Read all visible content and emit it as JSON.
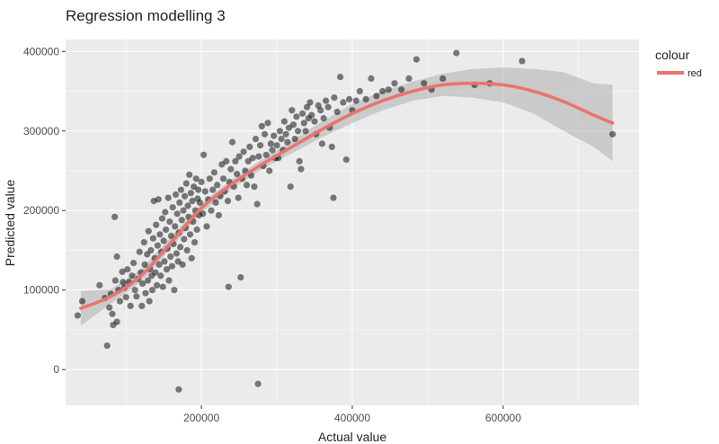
{
  "chart_data": {
    "type": "scatter",
    "title": "Regression modelling 3",
    "xlabel": "Actual value",
    "ylabel": "Predicted value",
    "xlim": [
      20000,
      780000
    ],
    "ylim": [
      -45000,
      415000
    ],
    "x_ticks": [
      200000,
      400000,
      600000
    ],
    "x_tick_labels": [
      "200000",
      "400000",
      "600000"
    ],
    "y_ticks": [
      0,
      100000,
      200000,
      300000,
      400000
    ],
    "y_tick_labels": [
      "0",
      "100000",
      "200000",
      "300000",
      "400000"
    ],
    "grid": true,
    "legend": {
      "title": "colour",
      "entries": [
        {
          "label": "red",
          "color": "#e8756e"
        }
      ],
      "position": "right-top"
    },
    "colors": {
      "panel": "#ebebeb",
      "grid": "#ffffff",
      "points": "#000000",
      "smooth": "#e8756e",
      "ribbon": "#999999"
    },
    "smooth": {
      "x": [
        40000,
        80000,
        120000,
        160000,
        200000,
        240000,
        280000,
        320000,
        360000,
        400000,
        440000,
        480000,
        520000,
        560000,
        600000,
        640000,
        680000,
        720000,
        745000
      ],
      "y": [
        77000,
        92000,
        118000,
        160000,
        203000,
        233000,
        258000,
        280000,
        302000,
        322000,
        338000,
        350000,
        358000,
        360000,
        358000,
        350000,
        337000,
        320000,
        310000
      ],
      "lower": [
        55000,
        83000,
        110000,
        153000,
        197000,
        227000,
        252000,
        272000,
        292000,
        310000,
        326000,
        338000,
        344000,
        342000,
        336000,
        322000,
        300000,
        280000,
        262000
      ],
      "upper": [
        99000,
        101000,
        126000,
        167000,
        209000,
        239000,
        264000,
        288000,
        312000,
        334000,
        350000,
        362000,
        372000,
        378000,
        380000,
        378000,
        374000,
        360000,
        358000
      ]
    },
    "points": [
      [
        36000,
        68000
      ],
      [
        42000,
        86000
      ],
      [
        65000,
        106000
      ],
      [
        72000,
        90000
      ],
      [
        75000,
        30000
      ],
      [
        78000,
        78000
      ],
      [
        80000,
        95000
      ],
      [
        82000,
        70000
      ],
      [
        83000,
        56000
      ],
      [
        85000,
        192000
      ],
      [
        86000,
        112000
      ],
      [
        88000,
        60000
      ],
      [
        88000,
        142000
      ],
      [
        90000,
        100000
      ],
      [
        92000,
        86000
      ],
      [
        95000,
        123000
      ],
      [
        96000,
        110000
      ],
      [
        98000,
        103000
      ],
      [
        100000,
        91000
      ],
      [
        102000,
        126000
      ],
      [
        104000,
        110000
      ],
      [
        106000,
        80000
      ],
      [
        108000,
        118000
      ],
      [
        110000,
        134000
      ],
      [
        112000,
        100000
      ],
      [
        114000,
        92000
      ],
      [
        116000,
        114000
      ],
      [
        118000,
        148000
      ],
      [
        120000,
        122000
      ],
      [
        121000,
        80000
      ],
      [
        122000,
        108000
      ],
      [
        124000,
        160000
      ],
      [
        125000,
        132000
      ],
      [
        126000,
        96000
      ],
      [
        128000,
        145000
      ],
      [
        129000,
        112000
      ],
      [
        130000,
        174000
      ],
      [
        131000,
        86000
      ],
      [
        132000,
        126000
      ],
      [
        133000,
        150000
      ],
      [
        134000,
        118000
      ],
      [
        135000,
        100000
      ],
      [
        136000,
        165000
      ],
      [
        137000,
        212000
      ],
      [
        138000,
        140000
      ],
      [
        139000,
        122000
      ],
      [
        140000,
        182000
      ],
      [
        141000,
        106000
      ],
      [
        142000,
        156000
      ],
      [
        143000,
        214000
      ],
      [
        144000,
        132000
      ],
      [
        145000,
        170000
      ],
      [
        146000,
        118000
      ],
      [
        147000,
        148000
      ],
      [
        148000,
        190000
      ],
      [
        149000,
        104000
      ],
      [
        150000,
        162000
      ],
      [
        151000,
        136000
      ],
      [
        152000,
        198000
      ],
      [
        153000,
        176000
      ],
      [
        154000,
        126000
      ],
      [
        155000,
        152000
      ],
      [
        156000,
        216000
      ],
      [
        157000,
        112000
      ],
      [
        158000,
        186000
      ],
      [
        159000,
        142000
      ],
      [
        160000,
        168000
      ],
      [
        161000,
        130000
      ],
      [
        162000,
        204000
      ],
      [
        163000,
        158000
      ],
      [
        164000,
        100000
      ],
      [
        165000,
        180000
      ],
      [
        166000,
        220000
      ],
      [
        167000,
        146000
      ],
      [
        168000,
        196000
      ],
      [
        169000,
        136000
      ],
      [
        170000,
        172000
      ],
      [
        170000,
        -25000
      ],
      [
        171000,
        210000
      ],
      [
        172000,
        154000
      ],
      [
        173000,
        226000
      ],
      [
        174000,
        188000
      ],
      [
        175000,
        132000
      ],
      [
        176000,
        200000
      ],
      [
        177000,
        164000
      ],
      [
        178000,
        218000
      ],
      [
        179000,
        178000
      ],
      [
        180000,
        234000
      ],
      [
        181000,
        150000
      ],
      [
        182000,
        206000
      ],
      [
        183000,
        192000
      ],
      [
        184000,
        245000
      ],
      [
        185000,
        170000
      ],
      [
        186000,
        222000
      ],
      [
        187000,
        140000
      ],
      [
        188000,
        212000
      ],
      [
        189000,
        186000
      ],
      [
        190000,
        230000
      ],
      [
        191000,
        160000
      ],
      [
        192000,
        200000
      ],
      [
        193000,
        240000
      ],
      [
        194000,
        176000
      ],
      [
        195000,
        215000
      ],
      [
        196000,
        226000
      ],
      [
        197000,
        194000
      ],
      [
        198000,
        210000
      ],
      [
        200000,
        236000
      ],
      [
        202000,
        196000
      ],
      [
        203000,
        270000
      ],
      [
        205000,
        224000
      ],
      [
        207000,
        180000
      ],
      [
        209000,
        214000
      ],
      [
        211000,
        240000
      ],
      [
        213000,
        200000
      ],
      [
        215000,
        226000
      ],
      [
        217000,
        248000
      ],
      [
        219000,
        210000
      ],
      [
        221000,
        232000
      ],
      [
        223000,
        194000
      ],
      [
        225000,
        218000
      ],
      [
        227000,
        258000
      ],
      [
        229000,
        240000
      ],
      [
        231000,
        224000
      ],
      [
        233000,
        262000
      ],
      [
        235000,
        212000
      ],
      [
        236000,
        104000
      ],
      [
        237000,
        236000
      ],
      [
        239000,
        252000
      ],
      [
        241000,
        286000
      ],
      [
        243000,
        230000
      ],
      [
        245000,
        262000
      ],
      [
        247000,
        246000
      ],
      [
        249000,
        216000
      ],
      [
        250000,
        268000
      ],
      [
        252000,
        116000
      ],
      [
        254000,
        240000
      ],
      [
        256000,
        274000
      ],
      [
        258000,
        250000
      ],
      [
        260000,
        232000
      ],
      [
        262000,
        262000
      ],
      [
        264000,
        280000
      ],
      [
        266000,
        244000
      ],
      [
        268000,
        266000
      ],
      [
        270000,
        230000
      ],
      [
        272000,
        290000
      ],
      [
        274000,
        208000
      ],
      [
        275000,
        -18000
      ],
      [
        276000,
        268000
      ],
      [
        278000,
        282000
      ],
      [
        280000,
        306000
      ],
      [
        282000,
        256000
      ],
      [
        284000,
        296000
      ],
      [
        286000,
        270000
      ],
      [
        288000,
        310000
      ],
      [
        290000,
        250000
      ],
      [
        292000,
        284000
      ],
      [
        294000,
        276000
      ],
      [
        296000,
        294000
      ],
      [
        298000,
        266000
      ],
      [
        300000,
        282000
      ],
      [
        302000,
        266000
      ],
      [
        304000,
        300000
      ],
      [
        306000,
        290000
      ],
      [
        308000,
        276000
      ],
      [
        310000,
        312000
      ],
      [
        312000,
        296000
      ],
      [
        314000,
        286000
      ],
      [
        316000,
        304000
      ],
      [
        318000,
        230000
      ],
      [
        320000,
        326000
      ],
      [
        322000,
        308000
      ],
      [
        324000,
        290000
      ],
      [
        326000,
        318000
      ],
      [
        328000,
        300000
      ],
      [
        330000,
        262000
      ],
      [
        332000,
        252000
      ],
      [
        334000,
        322000
      ],
      [
        336000,
        310000
      ],
      [
        338000,
        300000
      ],
      [
        340000,
        330000
      ],
      [
        342000,
        316000
      ],
      [
        344000,
        336000
      ],
      [
        346000,
        320000
      ],
      [
        350000,
        312000
      ],
      [
        352000,
        296000
      ],
      [
        355000,
        332000
      ],
      [
        358000,
        326000
      ],
      [
        360000,
        284000
      ],
      [
        362000,
        316000
      ],
      [
        365000,
        338000
      ],
      [
        368000,
        330000
      ],
      [
        370000,
        304000
      ],
      [
        373000,
        280000
      ],
      [
        375000,
        216000
      ],
      [
        376000,
        342000
      ],
      [
        380000,
        324000
      ],
      [
        384000,
        368000
      ],
      [
        388000,
        336000
      ],
      [
        392000,
        264000
      ],
      [
        396000,
        340000
      ],
      [
        400000,
        326000
      ],
      [
        405000,
        338000
      ],
      [
        410000,
        350000
      ],
      [
        418000,
        340000
      ],
      [
        425000,
        366000
      ],
      [
        432000,
        344000
      ],
      [
        440000,
        350000
      ],
      [
        448000,
        352000
      ],
      [
        456000,
        360000
      ],
      [
        465000,
        352000
      ],
      [
        475000,
        366000
      ],
      [
        485000,
        390000
      ],
      [
        495000,
        360000
      ],
      [
        505000,
        352000
      ],
      [
        520000,
        366000
      ],
      [
        538000,
        398000
      ],
      [
        562000,
        358000
      ],
      [
        582000,
        360000
      ],
      [
        625000,
        388000
      ],
      [
        745000,
        296000
      ]
    ]
  }
}
